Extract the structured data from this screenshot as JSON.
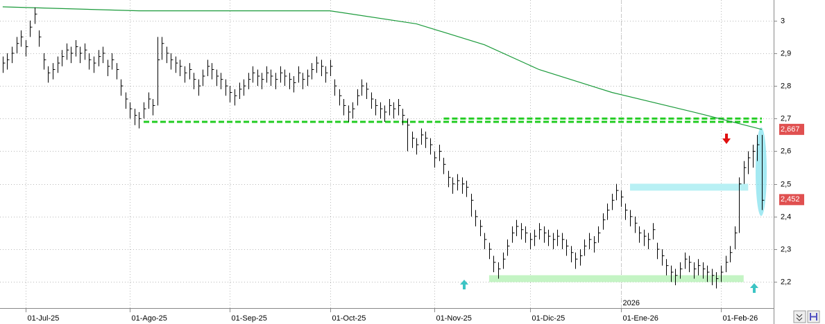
{
  "chart_data": {
    "type": "ohlc",
    "xlim": [
      -0.6,
      169.6
    ],
    "ylim": [
      2.12,
      3.063
    ],
    "xticks": [
      {
        "value": 5,
        "label": "01-Jul-25"
      },
      {
        "value": 28,
        "label": "01-Ago-25"
      },
      {
        "value": 50,
        "label": "01-Sep-25"
      },
      {
        "value": 72,
        "label": "01-Oct-25"
      },
      {
        "value": 95,
        "label": "01-Nov-25"
      },
      {
        "value": 116,
        "label": "01-Dic-25"
      },
      {
        "value": 136,
        "label": "01-Ene-26"
      },
      {
        "value": 158,
        "label": "01-Feb-26"
      }
    ],
    "yticks": [
      {
        "value": 2.2,
        "label": "2,2"
      },
      {
        "value": 2.3,
        "label": "2,3"
      },
      {
        "value": 2.4,
        "label": "2,4"
      },
      {
        "value": 2.5,
        "label": "2,5"
      },
      {
        "value": 2.6,
        "label": "2,6"
      },
      {
        "value": 2.7,
        "label": "2,7"
      },
      {
        "value": 2.8,
        "label": "2,8"
      },
      {
        "value": 2.9,
        "label": "2,9"
      },
      3
    ],
    "grid": true,
    "year_marker": {
      "value": 136,
      "label": "2026"
    },
    "color": "#000000",
    "high": [
      2.89,
      2.9,
      2.92,
      2.95,
      2.97,
      2.94,
      3.0,
      3.04,
      2.97,
      2.9,
      2.86,
      2.87,
      2.89,
      2.91,
      2.93,
      2.92,
      2.94,
      2.92,
      2.93,
      2.9,
      2.89,
      2.91,
      2.92,
      2.88,
      2.9,
      2.87,
      2.82,
      2.78,
      2.75,
      2.73,
      2.72,
      2.75,
      2.78,
      2.76,
      2.95,
      2.95,
      2.92,
      2.9,
      2.89,
      2.88,
      2.86,
      2.87,
      2.84,
      2.82,
      2.85,
      2.88,
      2.87,
      2.85,
      2.84,
      2.82,
      2.8,
      2.79,
      2.81,
      2.82,
      2.84,
      2.86,
      2.85,
      2.84,
      2.86,
      2.85,
      2.84,
      2.86,
      2.85,
      2.84,
      2.83,
      2.86,
      2.84,
      2.85,
      2.87,
      2.89,
      2.88,
      2.86,
      2.88,
      2.82,
      2.79,
      2.76,
      2.74,
      2.75,
      2.79,
      2.82,
      2.81,
      2.78,
      2.76,
      2.75,
      2.74,
      2.76,
      2.75,
      2.76,
      2.73,
      2.7,
      2.66,
      2.64,
      2.67,
      2.66,
      2.64,
      2.6,
      2.62,
      2.58,
      2.54,
      2.52,
      2.53,
      2.52,
      2.51,
      2.47,
      2.42,
      2.39,
      2.35,
      2.32,
      2.28,
      2.26,
      2.29,
      2.33,
      2.37,
      2.39,
      2.38,
      2.37,
      2.35,
      2.36,
      2.38,
      2.37,
      2.36,
      2.35,
      2.36,
      2.35,
      2.33,
      2.31,
      2.29,
      2.3,
      2.33,
      2.35,
      2.34,
      2.37,
      2.41,
      2.44,
      2.47,
      2.5,
      2.48,
      2.44,
      2.42,
      2.4,
      2.37,
      2.36,
      2.35,
      2.38,
      2.32,
      2.3,
      2.27,
      2.25,
      2.24,
      2.26,
      2.29,
      2.28,
      2.26,
      2.27,
      2.26,
      2.25,
      2.24,
      2.23,
      2.25,
      2.28,
      2.31,
      2.37,
      2.52,
      2.57,
      2.6,
      2.62,
      2.65,
      2.65
    ],
    "low": [
      2.84,
      2.85,
      2.87,
      2.9,
      2.92,
      2.89,
      2.95,
      2.99,
      2.92,
      2.85,
      2.81,
      2.82,
      2.84,
      2.86,
      2.88,
      2.87,
      2.89,
      2.87,
      2.88,
      2.85,
      2.84,
      2.86,
      2.87,
      2.83,
      2.85,
      2.82,
      2.77,
      2.73,
      2.7,
      2.68,
      2.67,
      2.7,
      2.73,
      2.71,
      2.74,
      2.88,
      2.87,
      2.85,
      2.84,
      2.83,
      2.81,
      2.82,
      2.79,
      2.77,
      2.8,
      2.83,
      2.82,
      2.8,
      2.79,
      2.77,
      2.75,
      2.74,
      2.76,
      2.77,
      2.79,
      2.81,
      2.8,
      2.79,
      2.81,
      2.8,
      2.79,
      2.81,
      2.8,
      2.79,
      2.78,
      2.81,
      2.79,
      2.8,
      2.82,
      2.84,
      2.83,
      2.81,
      2.83,
      2.77,
      2.74,
      2.71,
      2.69,
      2.7,
      2.74,
      2.77,
      2.76,
      2.73,
      2.71,
      2.7,
      2.69,
      2.71,
      2.7,
      2.71,
      2.68,
      2.6,
      2.61,
      2.59,
      2.62,
      2.61,
      2.59,
      2.55,
      2.57,
      2.53,
      2.49,
      2.47,
      2.48,
      2.47,
      2.46,
      2.4,
      2.37,
      2.34,
      2.3,
      2.27,
      2.23,
      2.21,
      2.24,
      2.28,
      2.32,
      2.34,
      2.33,
      2.32,
      2.3,
      2.31,
      2.33,
      2.32,
      2.31,
      2.3,
      2.31,
      2.3,
      2.28,
      2.26,
      2.24,
      2.25,
      2.28,
      2.3,
      2.29,
      2.32,
      2.36,
      2.39,
      2.42,
      2.45,
      2.43,
      2.39,
      2.37,
      2.35,
      2.32,
      2.31,
      2.3,
      2.33,
      2.27,
      2.25,
      2.22,
      2.2,
      2.19,
      2.21,
      2.24,
      2.23,
      2.21,
      2.22,
      2.21,
      2.2,
      2.19,
      2.18,
      2.2,
      2.23,
      2.26,
      2.3,
      2.35,
      2.5,
      2.53,
      2.55,
      2.57,
      2.42
    ],
    "close": [
      2.87,
      2.88,
      2.9,
      2.93,
      2.95,
      2.92,
      2.98,
      3.02,
      2.95,
      2.88,
      2.84,
      2.85,
      2.87,
      2.89,
      2.91,
      2.9,
      2.92,
      2.9,
      2.91,
      2.88,
      2.87,
      2.89,
      2.9,
      2.86,
      2.88,
      2.85,
      2.8,
      2.76,
      2.73,
      2.71,
      2.7,
      2.73,
      2.76,
      2.74,
      2.88,
      2.93,
      2.9,
      2.88,
      2.87,
      2.86,
      2.84,
      2.85,
      2.82,
      2.8,
      2.83,
      2.86,
      2.85,
      2.83,
      2.82,
      2.8,
      2.78,
      2.77,
      2.79,
      2.8,
      2.82,
      2.84,
      2.83,
      2.82,
      2.84,
      2.83,
      2.82,
      2.84,
      2.83,
      2.82,
      2.81,
      2.84,
      2.82,
      2.83,
      2.85,
      2.87,
      2.86,
      2.84,
      2.86,
      2.8,
      2.77,
      2.74,
      2.72,
      2.73,
      2.77,
      2.8,
      2.79,
      2.76,
      2.74,
      2.73,
      2.72,
      2.74,
      2.73,
      2.74,
      2.71,
      2.68,
      2.64,
      2.62,
      2.65,
      2.64,
      2.62,
      2.58,
      2.6,
      2.56,
      2.52,
      2.5,
      2.51,
      2.5,
      2.49,
      2.45,
      2.4,
      2.37,
      2.33,
      2.3,
      2.26,
      2.24,
      2.27,
      2.31,
      2.35,
      2.37,
      2.36,
      2.35,
      2.33,
      2.34,
      2.36,
      2.35,
      2.34,
      2.33,
      2.34,
      2.33,
      2.31,
      2.29,
      2.27,
      2.28,
      2.31,
      2.33,
      2.32,
      2.35,
      2.39,
      2.42,
      2.45,
      2.48,
      2.46,
      2.42,
      2.4,
      2.38,
      2.35,
      2.34,
      2.33,
      2.36,
      2.3,
      2.28,
      2.25,
      2.23,
      2.22,
      2.24,
      2.27,
      2.26,
      2.24,
      2.25,
      2.24,
      2.23,
      2.22,
      2.21,
      2.23,
      2.26,
      2.29,
      2.35,
      2.5,
      2.55,
      2.58,
      2.6,
      2.62,
      2.45
    ],
    "moving_average": {
      "color": "#1a9a3a",
      "x": [
        0,
        30,
        72,
        91,
        106,
        118,
        134,
        152,
        167
      ],
      "values": [
        3.042,
        3.03,
        3.03,
        2.99,
        2.926,
        2.85,
        2.78,
        2.72,
        2.667
      ]
    },
    "levels": [
      {
        "value": 2.69,
        "x": [
          31,
          167
        ],
        "color": "#22cc22",
        "style": "dashed"
      },
      {
        "value": 2.7,
        "x": [
          97,
          167
        ],
        "color": "#22cc22",
        "style": "dashed"
      },
      {
        "value": 2.49,
        "x": [
          138,
          164
        ],
        "color": "#b8f0f4",
        "style": "band"
      },
      {
        "value": 2.21,
        "x": [
          107,
          163
        ],
        "color": "#c4f4c4",
        "style": "band"
      }
    ],
    "price_labels": [
      {
        "value": 2.667,
        "label": "2,667"
      },
      {
        "value": 2.452,
        "label": "2,452"
      }
    ]
  }
}
